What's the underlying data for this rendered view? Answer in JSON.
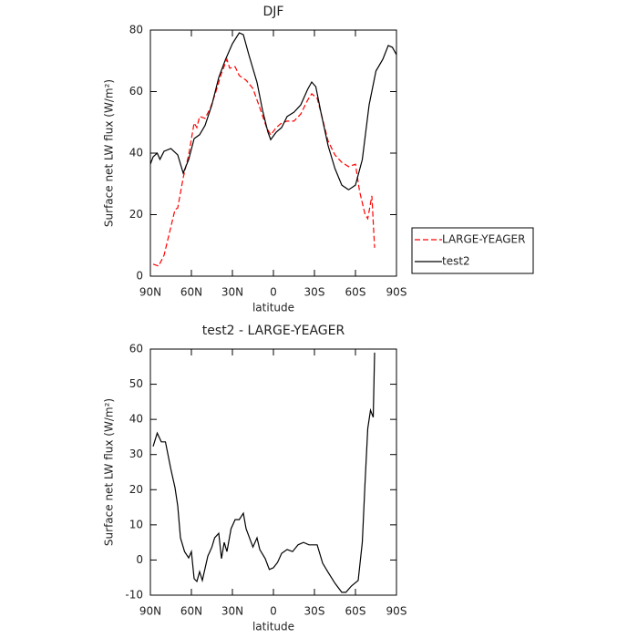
{
  "chart_data": [
    {
      "type": "line",
      "title": "DJF",
      "xlabel": "latitude",
      "ylabel": "Surface net LW flux (W/m²)",
      "xlim": [
        90,
        -90
      ],
      "xticks": [
        {
          "value": 90,
          "label": "90N"
        },
        {
          "value": 60,
          "label": "60N"
        },
        {
          "value": 30,
          "label": "30N"
        },
        0,
        {
          "value": -30,
          "label": "30S"
        },
        {
          "value": -60,
          "label": "60S"
        },
        {
          "value": -90,
          "label": "90S"
        }
      ],
      "ylim": [
        0,
        80
      ],
      "yticks": [
        0,
        20,
        40,
        60,
        80
      ],
      "legend": "right",
      "series": [
        {
          "name": "LARGE-YEAGER",
          "color": "#ff0000",
          "line_style": "dashed",
          "x": [
            88,
            84,
            80,
            76,
            72,
            70,
            66,
            62,
            58,
            56,
            54,
            50,
            46,
            42,
            38,
            34,
            32,
            28,
            25,
            20,
            15,
            10,
            5,
            2,
            -2,
            -6,
            -10,
            -15,
            -20,
            -25,
            -28,
            -32,
            -35,
            -40,
            -45,
            -50,
            -55,
            -60,
            -63,
            -67,
            -69,
            -72,
            -74
          ],
          "values": [
            3.9,
            3.3,
            6.8,
            14.2,
            21.6,
            22.2,
            32,
            39.4,
            49.8,
            48.3,
            51.9,
            51.3,
            54.8,
            60.1,
            66,
            70.5,
            67.6,
            68.1,
            65.2,
            63.7,
            61,
            54.8,
            48.3,
            45.9,
            48.3,
            49.8,
            50.4,
            50.4,
            52.7,
            57.2,
            59.3,
            57.8,
            52.7,
            43.9,
            39.4,
            37,
            35.6,
            36.4,
            27.6,
            20.1,
            18.7,
            26.1,
            9.2
          ]
        },
        {
          "name": "test2",
          "color": "#000000",
          "line_style": "solid",
          "x": [
            90,
            88,
            85,
            83,
            80,
            75,
            70,
            66,
            62,
            58,
            54,
            50,
            45,
            40,
            35,
            30,
            25,
            22,
            18,
            12,
            8,
            4,
            2,
            -2,
            -6,
            -10,
            -15,
            -20,
            -25,
            -28,
            -31,
            -35,
            -40,
            -45,
            -50,
            -55,
            -60,
            -65,
            -70,
            -75,
            -80,
            -84,
            -87,
            -90
          ],
          "values": [
            36.4,
            38.8,
            40,
            38,
            40.6,
            41.5,
            39.4,
            33.5,
            37.9,
            44.7,
            46,
            49,
            55.7,
            64.6,
            70.5,
            75.6,
            79.1,
            78.5,
            72,
            63,
            54,
            46.8,
            44.4,
            46.8,
            48.3,
            51.9,
            53.3,
            55.7,
            60.7,
            63.1,
            61.6,
            52.7,
            42.4,
            35,
            29.6,
            28.1,
            29.6,
            37.9,
            55.7,
            66.7,
            70.5,
            75,
            74.4,
            72
          ]
        }
      ]
    },
    {
      "type": "line",
      "title": "test2 - LARGE-YEAGER",
      "xlabel": "latitude",
      "ylabel": "Surface net LW flux (W/m²)",
      "xlim": [
        90,
        -90
      ],
      "xticks": [
        {
          "value": 90,
          "label": "90N"
        },
        {
          "value": 60,
          "label": "60N"
        },
        {
          "value": 30,
          "label": "30N"
        },
        0,
        {
          "value": -30,
          "label": "30S"
        },
        {
          "value": -60,
          "label": "60S"
        },
        {
          "value": -90,
          "label": "90S"
        }
      ],
      "ylim": [
        -10,
        60
      ],
      "yticks": [
        -10,
        0,
        10,
        20,
        30,
        40,
        50,
        60
      ],
      "color": "#000000",
      "x": [
        88,
        85,
        82,
        79,
        75,
        72,
        70,
        68,
        65,
        62,
        60,
        58,
        56,
        54,
        52,
        48,
        45,
        43,
        40,
        38,
        36,
        34,
        31,
        28,
        25,
        22,
        20,
        15,
        12,
        10,
        6,
        3,
        0,
        -3,
        -6,
        -10,
        -14,
        -18,
        -22,
        -26,
        -32,
        -36,
        -40,
        -45,
        -50,
        -53,
        -57,
        -62,
        -65,
        -67,
        -69,
        -71,
        -73,
        -74
      ],
      "values": [
        32.3,
        36.1,
        33.6,
        33.6,
        25.8,
        20.6,
        15.4,
        6.3,
        2.4,
        0.6,
        2.4,
        -5.3,
        -6.1,
        -3.3,
        -5.8,
        1.1,
        3.7,
        6.3,
        7.6,
        0.4,
        5,
        2.4,
        8.9,
        11.5,
        11.5,
        13.3,
        8.9,
        3.7,
        6.3,
        3,
        0.4,
        -2.7,
        -2.2,
        -0.7,
        1.9,
        3,
        2.4,
        4.3,
        5,
        4.3,
        4.3,
        -0.9,
        -3.5,
        -6.6,
        -9.2,
        -9.2,
        -7.4,
        -5.8,
        5,
        21.9,
        37.4,
        42.6,
        40.6,
        59
      ]
    }
  ]
}
